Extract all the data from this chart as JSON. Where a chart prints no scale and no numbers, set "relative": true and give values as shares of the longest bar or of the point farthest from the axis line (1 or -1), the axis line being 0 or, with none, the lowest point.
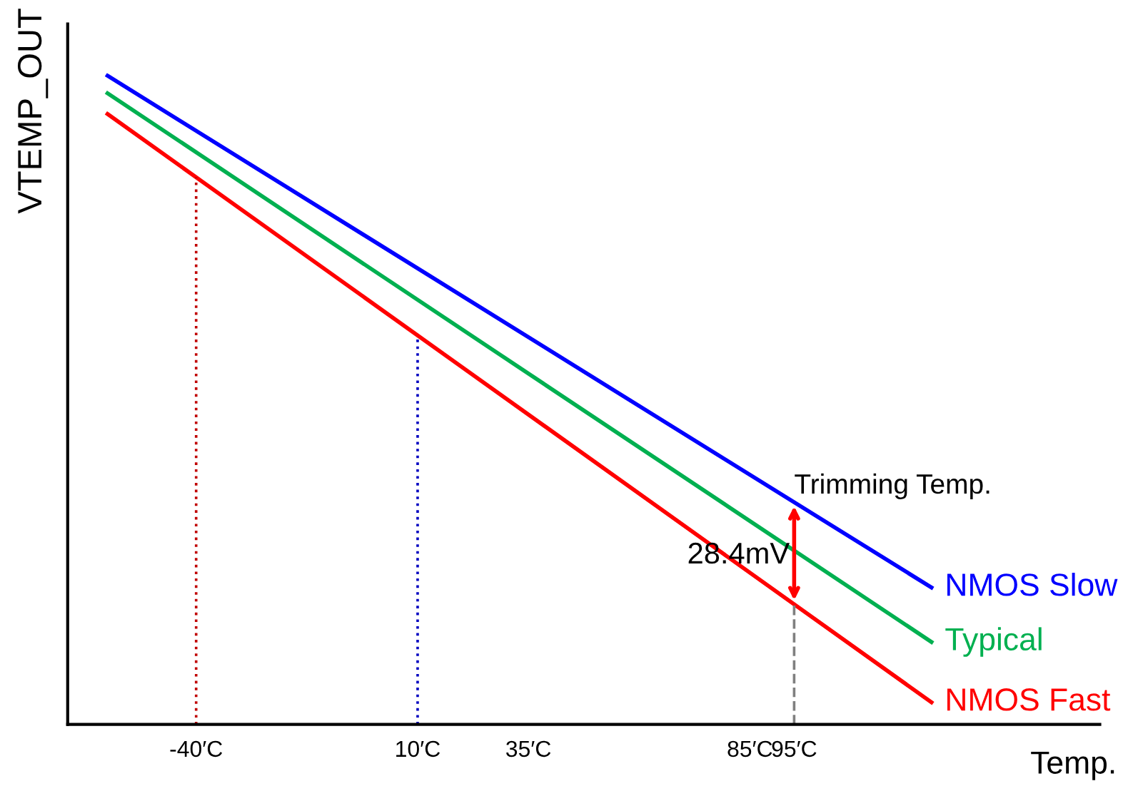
{
  "chart_data": {
    "type": "line",
    "relative": true,
    "xlabel": "Temp.",
    "ylabel": "VTEMP_OUT",
    "xlim": [
      -69,
      164
    ],
    "xticks": [
      {
        "value": -40,
        "label": "-40′C"
      },
      {
        "value": 10,
        "label": "10′C"
      },
      {
        "value": 35,
        "label": "35′C"
      },
      {
        "value": 85,
        "label": "85′C"
      },
      {
        "value": 95,
        "label": "95′C"
      }
    ],
    "x": [
      -60,
      126
    ],
    "series": [
      {
        "name": "NMOS Slow",
        "color": "#0000ff",
        "values": [
          1,
          0.211
        ]
      },
      {
        "name": "Typical",
        "color": "#00b050",
        "values": [
          0.973,
          0.127
        ]
      },
      {
        "name": "NMOS Fast",
        "color": "#ff0000",
        "values": [
          0.941,
          0.034
        ]
      }
    ],
    "ref_lines": [
      {
        "axis": "x",
        "value": -40,
        "color": "#c00000",
        "line_style": "dotted"
      },
      {
        "axis": "x",
        "value": 10,
        "color": "#0000c0",
        "line_style": "dotted"
      },
      {
        "axis": "x",
        "value": 95,
        "color": "#808080",
        "line_style": "dashed"
      }
    ],
    "annotations": [
      {
        "text": "Trimming Temp.",
        "x": 95,
        "y": 0.342
      },
      {
        "text": "28.4mV",
        "x": 95,
        "y": 0.26
      }
    ],
    "legend": false,
    "grid": false,
    "marker": "none",
    "line_style": "solid"
  }
}
